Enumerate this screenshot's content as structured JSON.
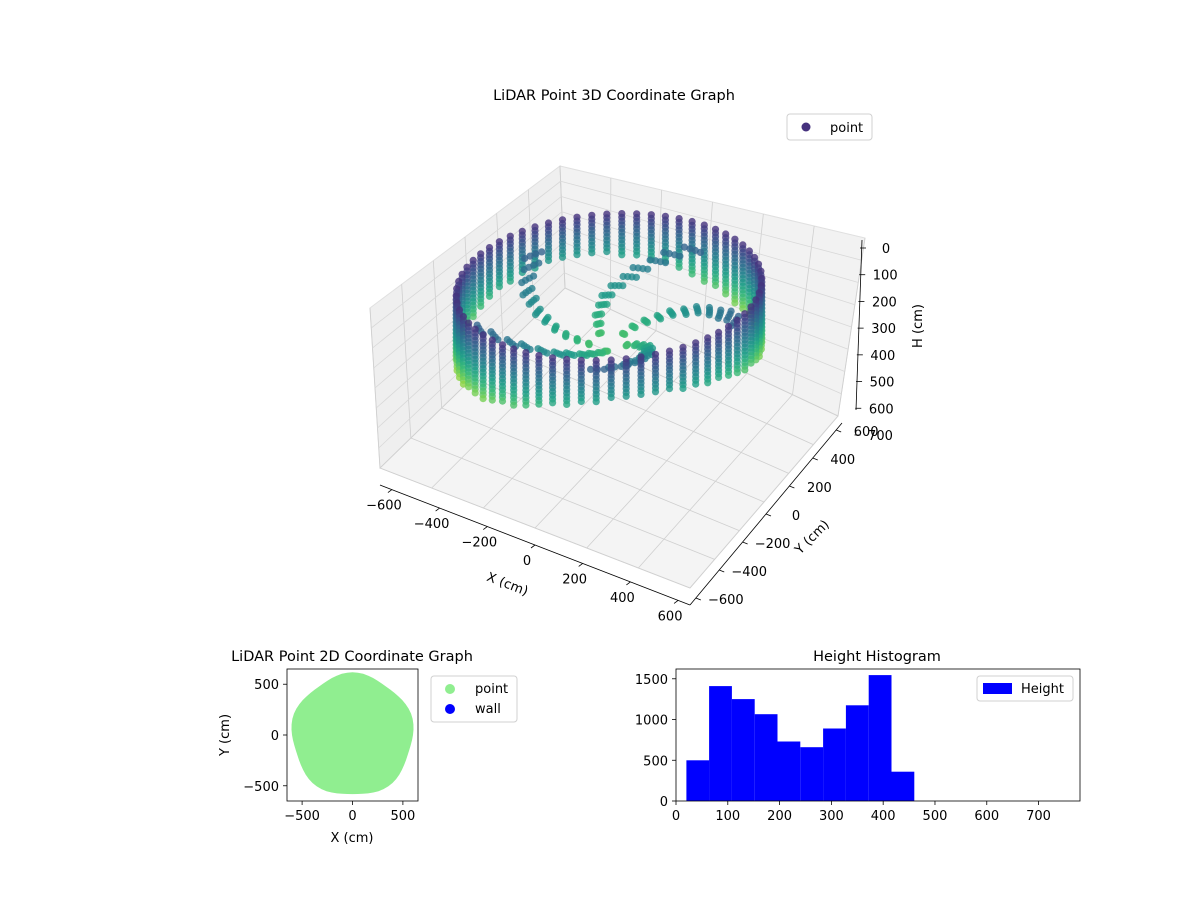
{
  "figure": {
    "colors": {
      "viridis_dark": "#440154",
      "viridis_mid": "#21918c",
      "viridis_light": "#bddf26",
      "green": "#90ee90",
      "blue": "#0000ff"
    }
  },
  "chart_data": [
    {
      "type": "scatter",
      "projection": "3d",
      "title": "LiDAR Point 3D Coordinate Graph",
      "xlabel": "X (cm)",
      "ylabel": "Y (cm)",
      "zlabel": "H (cm)",
      "xticks": [
        "−600",
        "−400",
        "−200",
        "0",
        "200",
        "400",
        "600"
      ],
      "yticks": [
        "−600",
        "−400",
        "−200",
        "0",
        "200",
        "400",
        "600"
      ],
      "zticks": [
        "0",
        "100",
        "200",
        "300",
        "400",
        "500",
        "600",
        "700"
      ],
      "xlim": [
        -650,
        650
      ],
      "ylim": [
        -650,
        650
      ],
      "zlim": [
        0,
        760
      ],
      "z_inverted": true,
      "colormap": "viridis",
      "legend": {
        "placement": "upper-right",
        "entries": [
          {
            "name": "point",
            "color": "#46327e"
          }
        ]
      },
      "series": [
        {
          "name": "point",
          "description_shape": "ring of radius ~600 cm with vertical columns from ~80 cm to ~400 cm depth; cone of points toward center"
        }
      ]
    },
    {
      "type": "scatter",
      "title": "LiDAR Point 2D Coordinate Graph",
      "xlabel": "X (cm)",
      "ylabel": "Y (cm)",
      "xticks": [
        "−500",
        "0",
        "500"
      ],
      "yticks": [
        "−500",
        "0",
        "500"
      ],
      "xlim": [
        -650,
        650
      ],
      "ylim": [
        -650,
        650
      ],
      "legend": {
        "placement": "outside-right",
        "entries": [
          {
            "name": "point",
            "color": "#90ee90"
          },
          {
            "name": "wall",
            "color": "#0000ff"
          }
        ]
      },
      "series": [
        {
          "name": "point",
          "shape": "filled disk",
          "center": [
            0,
            0
          ],
          "radius": 600,
          "color": "#90ee90"
        },
        {
          "name": "wall",
          "values": [],
          "color": "#0000ff"
        }
      ]
    },
    {
      "type": "bar",
      "subtype": "histogram",
      "title": "Height Histogram",
      "xlabel": "",
      "ylabel": "",
      "xticks": [
        "0",
        "100",
        "200",
        "300",
        "400",
        "500",
        "600",
        "700"
      ],
      "yticks": [
        "0",
        "500",
        "1000",
        "1500"
      ],
      "xlim": [
        0,
        780
      ],
      "ylim": [
        0,
        1620
      ],
      "bin_edges": [
        20,
        64,
        108,
        152,
        196,
        240,
        284,
        328,
        372,
        416,
        460
      ],
      "values": [
        500,
        1410,
        1250,
        1065,
        730,
        660,
        890,
        1175,
        1545,
        360
      ],
      "color": "#0000ff",
      "legend": {
        "placement": "upper-right",
        "entries": [
          {
            "name": "Height",
            "color": "#0000ff"
          }
        ]
      }
    }
  ]
}
